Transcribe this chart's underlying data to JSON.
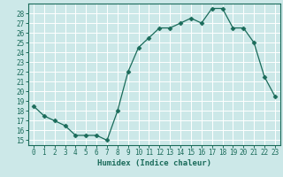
{
  "x": [
    0,
    1,
    2,
    3,
    4,
    5,
    6,
    7,
    8,
    9,
    10,
    11,
    12,
    13,
    14,
    15,
    16,
    17,
    18,
    19,
    20,
    21,
    22,
    23
  ],
  "y": [
    18.5,
    17.5,
    17.0,
    16.5,
    15.5,
    15.5,
    15.5,
    15.0,
    18.0,
    22.0,
    24.5,
    25.5,
    26.5,
    26.5,
    27.0,
    27.5,
    27.0,
    28.5,
    28.5,
    26.5,
    26.5,
    25.0,
    21.5,
    19.5
  ],
  "line_color": "#1a6b5a",
  "marker": "D",
  "markersize": 2.5,
  "bg_color": "#cce8e8",
  "grid_color": "#ffffff",
  "xlabel": "Humidex (Indice chaleur)",
  "xlim": [
    -0.5,
    23.5
  ],
  "ylim": [
    14.5,
    29.0
  ],
  "yticks": [
    15,
    16,
    17,
    18,
    19,
    20,
    21,
    22,
    23,
    24,
    25,
    26,
    27,
    28
  ],
  "xticks": [
    0,
    1,
    2,
    3,
    4,
    5,
    6,
    7,
    8,
    9,
    10,
    11,
    12,
    13,
    14,
    15,
    16,
    17,
    18,
    19,
    20,
    21,
    22,
    23
  ],
  "tick_fontsize": 5.5,
  "xlabel_fontsize": 6.5
}
